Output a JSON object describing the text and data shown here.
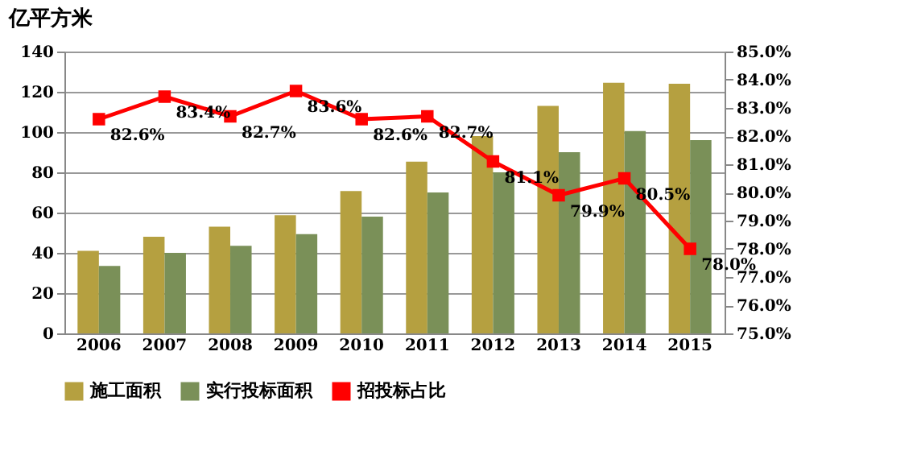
{
  "chart_data": {
    "type": "bar",
    "categories": [
      "2006",
      "2007",
      "2008",
      "2009",
      "2010",
      "2011",
      "2012",
      "2013",
      "2014",
      "2015"
    ],
    "ylabel": "亿平方米",
    "ylim": [
      0,
      140
    ],
    "yticks": [
      0,
      20,
      40,
      60,
      80,
      100,
      120,
      140
    ],
    "y2lim": [
      75,
      85
    ],
    "y2ticks": [
      {
        "value": 75,
        "label": "75.0%"
      },
      {
        "value": 76,
        "label": "76.0%"
      },
      {
        "value": 77,
        "label": "77.0%"
      },
      {
        "value": 78,
        "label": "78.0%"
      },
      {
        "value": 79,
        "label": "79.0%"
      },
      {
        "value": 80,
        "label": "80.0%"
      },
      {
        "value": 81,
        "label": "81.0%"
      },
      {
        "value": 82,
        "label": "82.0%"
      },
      {
        "value": 83,
        "label": "83.0%"
      },
      {
        "value": 84,
        "label": "84.0%"
      },
      {
        "value": 85,
        "label": "85.0%"
      }
    ],
    "series": [
      {
        "name": "施工面积",
        "color": "#b5a040",
        "values": [
          41,
          48,
          53,
          58.7,
          70.7,
          85.3,
          98,
          113,
          124.5,
          124
        ]
      },
      {
        "name": "实行投标面积",
        "color": "#7a9058",
        "values": [
          33.5,
          40,
          43.5,
          49.3,
          58,
          70,
          80,
          90,
          100.5,
          96
        ]
      },
      {
        "name": "招投标占比",
        "type": "line",
        "axis": "y2",
        "color": "#ff0000",
        "marker": "square",
        "values": [
          82.6,
          83.4,
          82.7,
          83.6,
          82.6,
          82.7,
          81.1,
          79.9,
          80.5,
          78.0
        ],
        "value_labels": [
          "82.6%",
          "83.4%",
          "82.7%",
          "83.6%",
          "82.6%",
          "82.7%",
          "81.1%",
          "79.9%",
          "80.5%",
          "78.0%"
        ]
      }
    ],
    "grid": "y",
    "legend": "bottom"
  }
}
